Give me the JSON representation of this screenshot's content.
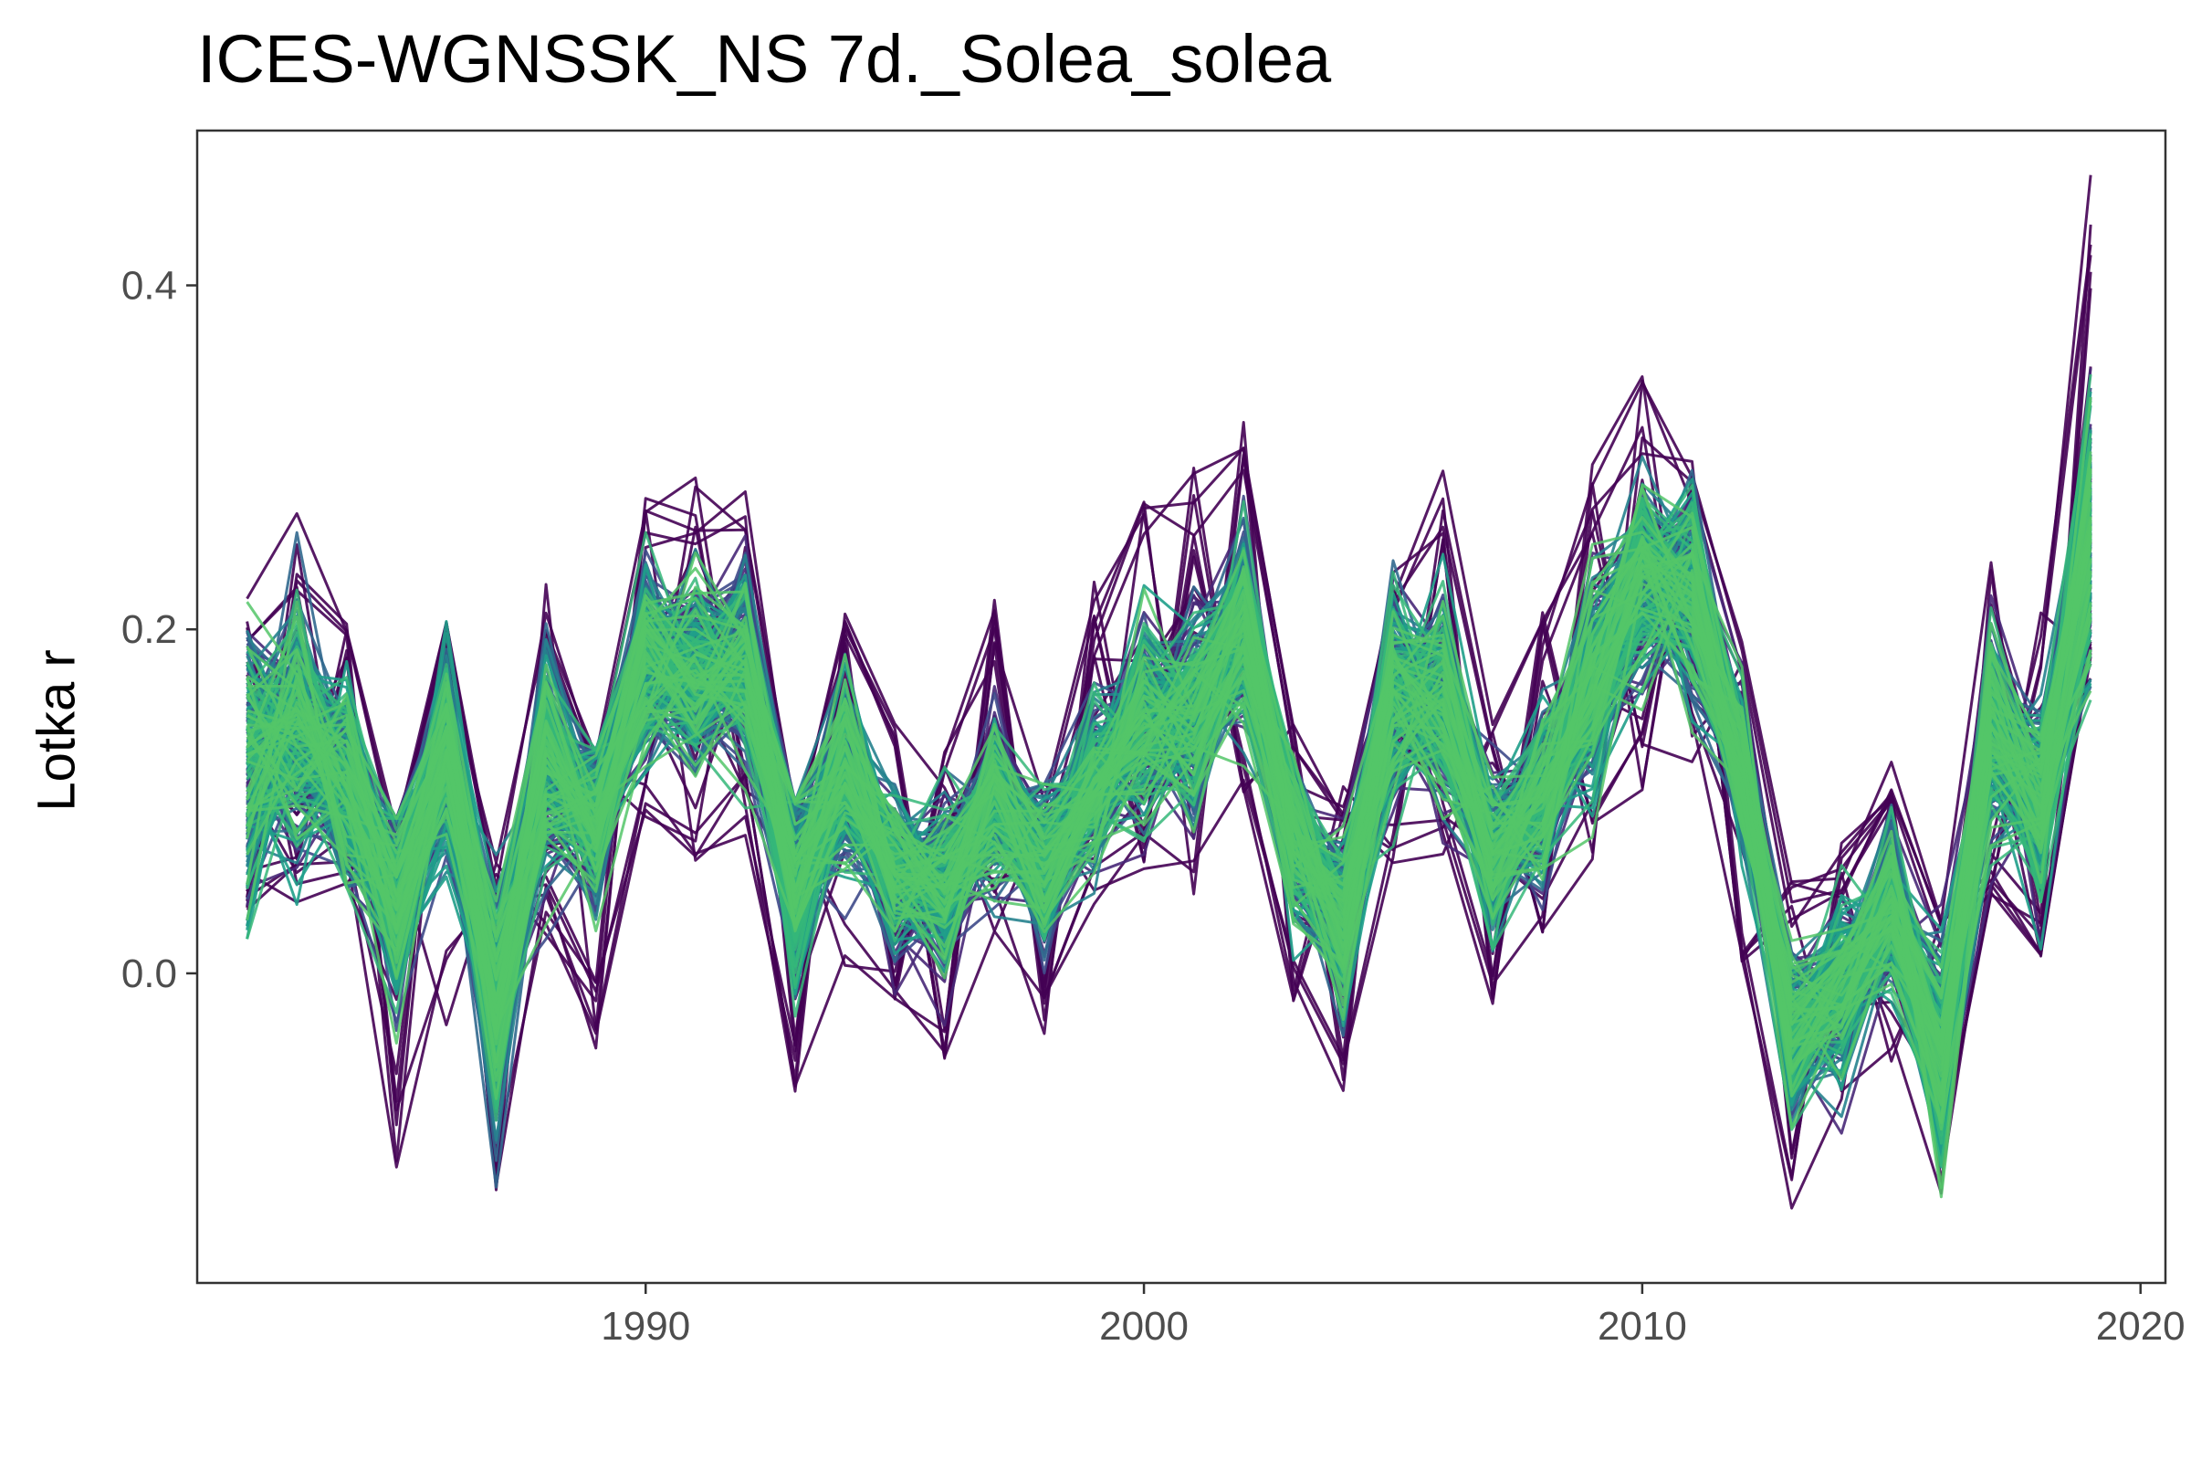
{
  "chart_data": {
    "type": "line",
    "title": "ICES-WGNSSK_NS 7d._Solea_solea",
    "xlabel": "",
    "ylabel": "Lotka r",
    "xlim": [
      1981.0,
      2020.5
    ],
    "ylim": [
      -0.18,
      0.49
    ],
    "x_ticks": [
      1990,
      2000,
      2010,
      2020
    ],
    "y_ticks": [
      0.0,
      0.2,
      0.4
    ],
    "x_tick_labels": [
      "1990",
      "2000",
      "2010",
      "2020"
    ],
    "y_tick_labels": [
      "0.0",
      "0.2",
      "0.4"
    ],
    "grid": false,
    "legend": "none",
    "n_series": 300,
    "color_scale": "viridis-range",
    "colors": [
      "#440154",
      "#482878",
      "#3e4a89",
      "#31688e",
      "#26828e",
      "#1f9e89",
      "#35b779",
      "#54c568"
    ],
    "x": [
      1982,
      1983,
      1984,
      1985,
      1986,
      1987,
      1988,
      1989,
      1990,
      1991,
      1992,
      1993,
      1994,
      1995,
      1996,
      1997,
      1998,
      1999,
      2000,
      2001,
      2002,
      2003,
      2004,
      2005,
      2006,
      2007,
      2008,
      2009,
      2010,
      2011,
      2012,
      2013,
      2014,
      2015,
      2016,
      2017,
      2018,
      2019
    ],
    "central_values": [
      0.12,
      0.14,
      0.11,
      0.04,
      0.13,
      -0.02,
      0.12,
      0.09,
      0.18,
      0.17,
      0.18,
      0.05,
      0.12,
      0.06,
      0.05,
      0.1,
      0.06,
      0.11,
      0.15,
      0.15,
      0.2,
      0.08,
      0.03,
      0.16,
      0.16,
      0.07,
      0.1,
      0.17,
      0.23,
      0.22,
      0.12,
      -0.04,
      -0.01,
      0.04,
      -0.05,
      0.14,
      0.1,
      0.25
    ],
    "spread": [
      0.07,
      0.06,
      0.05,
      0.05,
      0.05,
      0.06,
      0.05,
      0.04,
      0.05,
      0.05,
      0.05,
      0.05,
      0.05,
      0.04,
      0.04,
      0.04,
      0.04,
      0.04,
      0.05,
      0.05,
      0.05,
      0.04,
      0.04,
      0.05,
      0.05,
      0.04,
      0.04,
      0.05,
      0.05,
      0.05,
      0.04,
      0.04,
      0.04,
      0.04,
      0.05,
      0.05,
      0.05,
      0.07
    ],
    "envelope_min": [
      0.02,
      0.04,
      0.05,
      -0.12,
      -0.04,
      -0.15,
      0.02,
      -0.06,
      0.08,
      0.05,
      0.08,
      -0.09,
      0.0,
      -0.03,
      -0.05,
      0.02,
      -0.04,
      0.04,
      0.05,
      0.04,
      0.08,
      -0.03,
      -0.08,
      0.06,
      0.06,
      -0.02,
      -0.01,
      0.06,
      0.1,
      0.12,
      0.0,
      -0.14,
      -0.1,
      -0.06,
      -0.13,
      0.04,
      0.01,
      0.15
    ],
    "envelope_max": [
      0.24,
      0.27,
      0.22,
      0.09,
      0.21,
      0.07,
      0.23,
      0.13,
      0.29,
      0.3,
      0.29,
      0.1,
      0.21,
      0.15,
      0.13,
      0.22,
      0.11,
      0.23,
      0.28,
      0.3,
      0.33,
      0.15,
      0.11,
      0.24,
      0.3,
      0.16,
      0.21,
      0.31,
      0.35,
      0.3,
      0.2,
      0.06,
      0.08,
      0.13,
      0.04,
      0.24,
      0.21,
      0.47
    ]
  }
}
